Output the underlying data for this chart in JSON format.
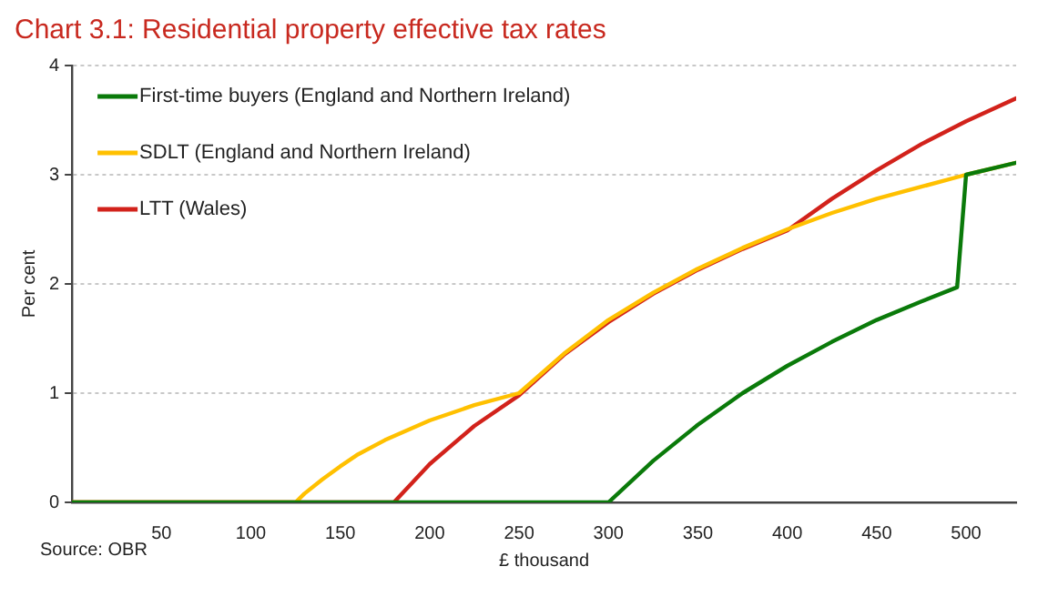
{
  "chart_data": {
    "type": "line",
    "title": "Chart 3.1: Residential property effective tax rates",
    "xlabel": "£ thousand",
    "ylabel": "Per cent",
    "annotations": [
      "Source: OBR"
    ],
    "xlim": [
      0,
      528
    ],
    "xticks": [
      50,
      100,
      150,
      200,
      250,
      300,
      350,
      400,
      450,
      500
    ],
    "ylim": [
      0,
      4
    ],
    "yticks": [
      0,
      1,
      2,
      3,
      4
    ],
    "grid": "y",
    "legend": "top left",
    "marker": "none",
    "line_style": "solid",
    "series": [
      {
        "name": "First-time buyers (England and Northern Ireland)",
        "color": "#0a7a0a",
        "x": [
          0,
          300,
          325,
          350,
          375,
          400,
          425,
          450,
          475,
          495,
          500,
          528
        ],
        "values": [
          0,
          0,
          0.38,
          0.71,
          1.0,
          1.25,
          1.47,
          1.67,
          1.84,
          1.97,
          3.0,
          3.11
        ]
      },
      {
        "name": "SDLT (England and Northern Ireland)",
        "color": "#ffc000",
        "x": [
          0,
          125,
          130,
          140,
          150,
          160,
          175,
          200,
          225,
          250,
          275,
          300,
          325,
          350,
          375,
          400,
          425,
          450,
          475,
          500,
          528
        ],
        "values": [
          0,
          0,
          0.08,
          0.21,
          0.33,
          0.44,
          0.57,
          0.75,
          0.89,
          1.0,
          1.36,
          1.67,
          1.92,
          2.14,
          2.33,
          2.5,
          2.65,
          2.78,
          2.89,
          3.0,
          3.11
        ]
      },
      {
        "name": "LTT (Wales)",
        "color": "#d2221b",
        "x": [
          0,
          180,
          200,
          225,
          250,
          275,
          300,
          325,
          350,
          375,
          400,
          425,
          450,
          475,
          500,
          528
        ],
        "values": [
          0,
          0,
          0.35,
          0.7,
          0.98,
          1.35,
          1.65,
          1.91,
          2.13,
          2.32,
          2.49,
          2.78,
          3.04,
          3.28,
          3.49,
          3.7
        ]
      }
    ]
  }
}
